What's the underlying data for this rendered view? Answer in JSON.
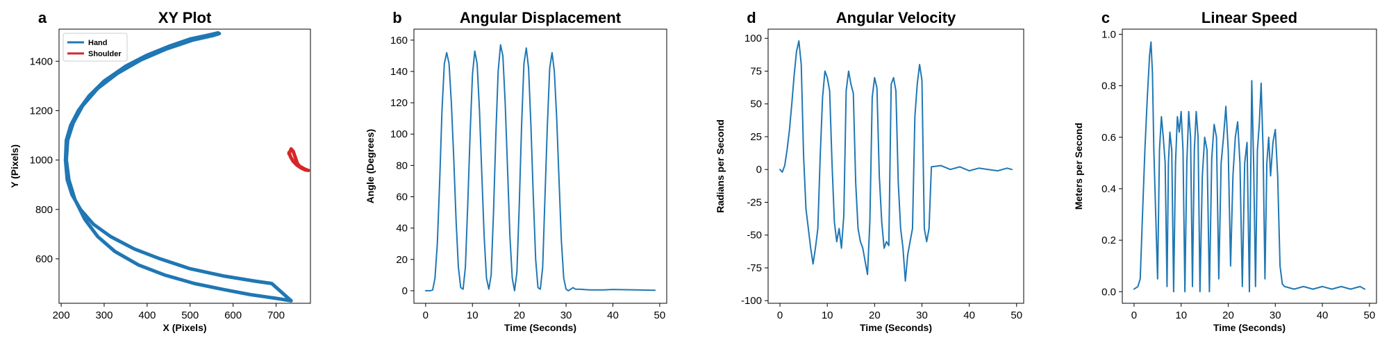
{
  "colors": {
    "blue": "#1f77b4",
    "red": "#d62728"
  },
  "chart_data": [
    {
      "id": "xy",
      "letter": "a",
      "type": "line",
      "title": "XY Plot",
      "xlabel": "X (Pixels)",
      "ylabel": "Y (Pixels)",
      "xlim": [
        195,
        780
      ],
      "ylim": [
        420,
        1530
      ],
      "xticks": [
        200,
        300,
        400,
        500,
        600,
        700
      ],
      "yticks": [
        600,
        800,
        1000,
        1200,
        1400
      ],
      "legend": "top-left",
      "series": [
        {
          "name": "Hand",
          "color": "#1f77b4",
          "x": [
            565,
            540,
            500,
            450,
            400,
            350,
            300,
            265,
            240,
            222,
            212,
            210,
            214,
            225,
            245,
            275,
            315,
            370,
            430,
            500,
            580,
            650,
            690,
            735,
            700,
            640,
            580,
            510,
            440,
            380,
            325,
            285,
            255,
            232,
            218,
            212,
            215,
            228,
            250,
            285,
            330,
            385,
            445,
            505,
            555,
            568
          ],
          "y": [
            1515,
            1505,
            1490,
            1460,
            1425,
            1380,
            1320,
            1260,
            1200,
            1140,
            1080,
            1000,
            920,
            860,
            800,
            740,
            690,
            640,
            600,
            560,
            530,
            510,
            500,
            430,
            440,
            455,
            475,
            500,
            535,
            575,
            630,
            690,
            760,
            840,
            920,
            1000,
            1080,
            1150,
            1220,
            1290,
            1350,
            1405,
            1450,
            1485,
            1505,
            1512
          ]
        },
        {
          "name": "Shoulder",
          "color": "#d62728",
          "x": [
            730,
            735,
            740,
            745,
            750,
            755,
            760,
            768,
            775,
            768,
            758,
            748,
            740,
            734,
            730
          ],
          "y": [
            1025,
            1045,
            1035,
            1010,
            985,
            975,
            970,
            962,
            958,
            960,
            968,
            980,
            995,
            1012,
            1030
          ]
        }
      ]
    },
    {
      "id": "ang",
      "letter": "b",
      "type": "line",
      "title": "Angular Displacement",
      "xlabel": "Time (Seconds)",
      "ylabel": "Angle (Degrees)",
      "xlim": [
        -2.5,
        51.5
      ],
      "ylim": [
        -8,
        167
      ],
      "xticks": [
        0,
        10,
        20,
        30,
        40,
        50
      ],
      "yticks": [
        0,
        20,
        40,
        60,
        80,
        100,
        120,
        140,
        160
      ],
      "series": [
        {
          "name": "",
          "color": "#1f77b4",
          "x": [
            0,
            1,
            1.5,
            2,
            2.5,
            3,
            3.5,
            4,
            4.5,
            5,
            5.5,
            6,
            6.5,
            7,
            7.5,
            8,
            8.5,
            9,
            9.5,
            10,
            10.5,
            11,
            11.5,
            12,
            12.5,
            13,
            13.5,
            14,
            14.5,
            15,
            15.5,
            16,
            16.5,
            17,
            17.5,
            18,
            18.5,
            19,
            19.5,
            20,
            20.5,
            21,
            21.5,
            22,
            22.5,
            23,
            23.5,
            24,
            24.5,
            25,
            25.5,
            26,
            26.5,
            27,
            27.5,
            28,
            28.5,
            29,
            29.5,
            30,
            30.5,
            31,
            31.5,
            32,
            33,
            35,
            38,
            40,
            45,
            49
          ],
          "y": [
            0,
            0,
            0.5,
            8,
            30,
            70,
            115,
            145,
            152,
            145,
            120,
            85,
            45,
            15,
            2,
            1,
            15,
            55,
            100,
            138,
            153,
            145,
            115,
            75,
            35,
            8,
            1,
            10,
            50,
            100,
            140,
            157,
            150,
            120,
            78,
            35,
            8,
            0,
            12,
            55,
            105,
            145,
            155,
            142,
            105,
            60,
            20,
            2,
            1,
            15,
            60,
            105,
            142,
            152,
            140,
            110,
            70,
            32,
            8,
            1,
            0,
            1,
            2,
            1,
            1,
            0.5,
            0.5,
            0.8,
            0.5,
            0.3
          ]
        }
      ]
    },
    {
      "id": "vel",
      "letter": "d",
      "type": "line",
      "title": "Angular Velocity",
      "xlabel": "Time (Seconds)",
      "ylabel": "Radians per Second",
      "xlim": [
        -2.5,
        51.5
      ],
      "ylim": [
        -102,
        107
      ],
      "xticks": [
        0,
        10,
        20,
        30,
        40,
        50
      ],
      "yticks": [
        -100,
        -75,
        -50,
        -25,
        0,
        25,
        50,
        75,
        100
      ],
      "series": [
        {
          "name": "",
          "color": "#1f77b4",
          "x": [
            0,
            0.5,
            1,
            1.5,
            2,
            2.5,
            3,
            3.5,
            4,
            4.5,
            5,
            5.5,
            6,
            6.5,
            7,
            7.5,
            8,
            8.5,
            9,
            9.5,
            10,
            10.5,
            11,
            11.5,
            12,
            12.5,
            13,
            13.5,
            14,
            14.5,
            15,
            15.5,
            16,
            16.5,
            17,
            17.5,
            18,
            18.5,
            19,
            19.5,
            20,
            20.5,
            21,
            21.5,
            22,
            22.5,
            23,
            23.5,
            24,
            24.5,
            25,
            25.5,
            26,
            26.5,
            27,
            27.5,
            28,
            28.5,
            29,
            29.5,
            30,
            30.5,
            31,
            31.5,
            32,
            34,
            36,
            38,
            40,
            42,
            44,
            46,
            48,
            49
          ],
          "y": [
            0,
            -2,
            3,
            15,
            30,
            50,
            72,
            90,
            98,
            80,
            10,
            -30,
            -45,
            -60,
            -72,
            -60,
            -45,
            10,
            55,
            75,
            70,
            60,
            5,
            -40,
            -55,
            -45,
            -60,
            -35,
            60,
            75,
            65,
            58,
            -10,
            -45,
            -55,
            -60,
            -70,
            -80,
            -40,
            55,
            70,
            62,
            -5,
            -40,
            -60,
            -55,
            -58,
            65,
            70,
            60,
            -10,
            -45,
            -60,
            -85,
            -65,
            -55,
            -45,
            40,
            65,
            80,
            68,
            -45,
            -55,
            -45,
            2,
            3,
            0,
            2,
            -1,
            1,
            0,
            -1,
            1,
            0
          ]
        }
      ]
    },
    {
      "id": "lin",
      "letter": "c",
      "type": "line",
      "title": "Linear Speed",
      "xlabel": "Time (Seconds)",
      "ylabel": "Meters per Second",
      "xlim": [
        -2.5,
        51.5
      ],
      "ylim": [
        -0.045,
        1.02
      ],
      "xticks": [
        0,
        10,
        20,
        30,
        40,
        50
      ],
      "yticks": [
        0.0,
        0.2,
        0.4,
        0.6,
        0.8,
        1.0
      ],
      "series": [
        {
          "name": "",
          "color": "#1f77b4",
          "x": [
            0,
            0.8,
            1.3,
            1.8,
            2.3,
            2.8,
            3.3,
            3.6,
            3.9,
            4.2,
            4.6,
            5.0,
            5.4,
            5.8,
            6.2,
            6.6,
            7.0,
            7.3,
            7.6,
            8.0,
            8.4,
            8.8,
            9.2,
            9.6,
            10.0,
            10.4,
            10.8,
            11.2,
            11.6,
            12.0,
            12.4,
            12.8,
            13.2,
            13.6,
            14.0,
            14.5,
            15.0,
            15.5,
            16.0,
            16.5,
            17.0,
            17.5,
            18.0,
            18.5,
            19.0,
            19.5,
            20.0,
            20.5,
            21.0,
            21.5,
            22.0,
            22.5,
            23.0,
            23.5,
            24.0,
            24.5,
            25.0,
            25.4,
            25.8,
            26.2,
            26.6,
            27.0,
            27.4,
            27.8,
            28.2,
            28.6,
            29.0,
            29.5,
            30.0,
            30.5,
            31.0,
            31.5,
            32.0,
            34,
            36,
            38,
            40,
            42,
            44,
            46,
            48,
            49
          ],
          "y": [
            0.01,
            0.02,
            0.05,
            0.3,
            0.55,
            0.75,
            0.92,
            0.97,
            0.85,
            0.55,
            0.3,
            0.05,
            0.55,
            0.68,
            0.6,
            0.5,
            0.02,
            0.5,
            0.62,
            0.55,
            0.0,
            0.5,
            0.68,
            0.62,
            0.7,
            0.55,
            0.0,
            0.5,
            0.7,
            0.6,
            0.02,
            0.55,
            0.7,
            0.6,
            0.0,
            0.45,
            0.6,
            0.55,
            0.0,
            0.52,
            0.65,
            0.6,
            0.05,
            0.5,
            0.6,
            0.72,
            0.55,
            0.1,
            0.45,
            0.6,
            0.66,
            0.5,
            0.02,
            0.5,
            0.58,
            0.0,
            0.82,
            0.5,
            0.02,
            0.55,
            0.65,
            0.81,
            0.55,
            0.05,
            0.5,
            0.6,
            0.45,
            0.58,
            0.63,
            0.45,
            0.1,
            0.03,
            0.02,
            0.01,
            0.02,
            0.01,
            0.02,
            0.01,
            0.02,
            0.01,
            0.02,
            0.01
          ]
        }
      ]
    }
  ]
}
